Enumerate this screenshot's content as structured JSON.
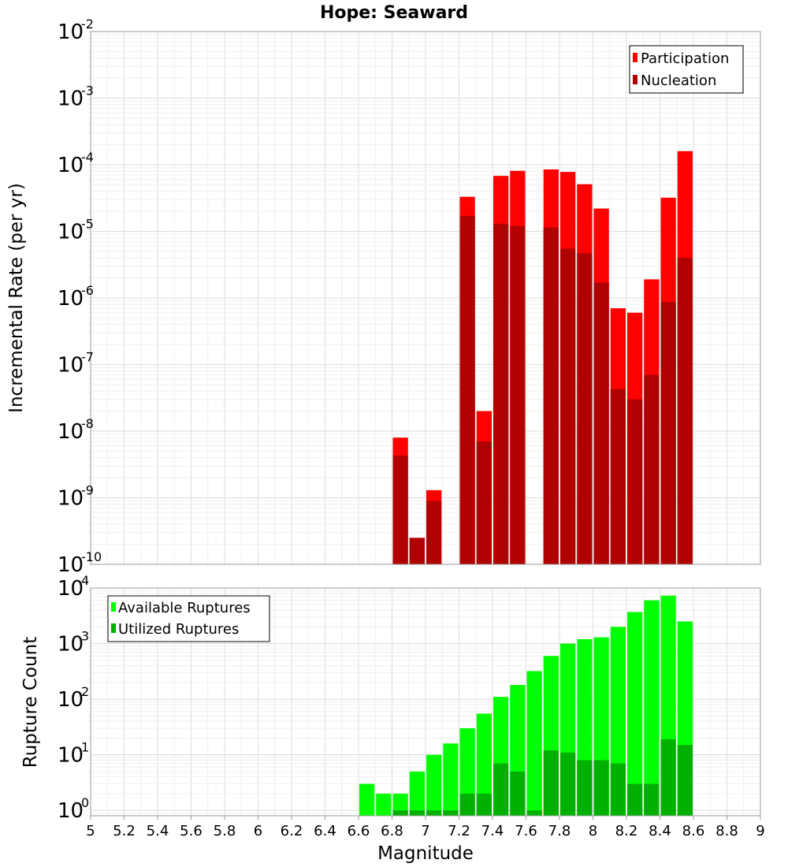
{
  "chart_data": [
    {
      "type": "bar",
      "title": "Hope: Seaward",
      "ylabel": "Incremental Rate (per yr)",
      "xlabel": "",
      "y_scale": "log",
      "ylim": [
        1e-10,
        0.01
      ],
      "xlim": [
        5,
        9
      ],
      "y_ticks": [
        {
          "base": "10",
          "exp": "-10"
        },
        {
          "base": "10",
          "exp": "-9"
        },
        {
          "base": "10",
          "exp": "-8"
        },
        {
          "base": "10",
          "exp": "-7"
        },
        {
          "base": "10",
          "exp": "-6"
        },
        {
          "base": "10",
          "exp": "-5"
        },
        {
          "base": "10",
          "exp": "-4"
        },
        {
          "base": "10",
          "exp": "-3"
        },
        {
          "base": "10",
          "exp": "-2"
        }
      ],
      "legend_position": "top-right",
      "grid": true,
      "series": [
        {
          "name": "Participation",
          "color": "#ff0000",
          "x": [
            6.85,
            6.95,
            7.05,
            7.25,
            7.35,
            7.45,
            7.55,
            7.75,
            7.85,
            7.95,
            8.05,
            8.15,
            8.25,
            8.35,
            8.45,
            8.55
          ],
          "values": [
            8e-09,
            2.5e-10,
            1.3e-09,
            3.3e-05,
            2e-08,
            6.8e-05,
            8.1e-05,
            8.5e-05,
            7.8e-05,
            5.1e-05,
            2.2e-05,
            7e-07,
            6e-07,
            1.9e-06,
            3.2e-05,
            0.00016
          ]
        },
        {
          "name": "Nucleation",
          "color": "#b00000",
          "x": [
            6.85,
            6.95,
            7.05,
            7.25,
            7.35,
            7.45,
            7.55,
            7.75,
            7.85,
            7.95,
            8.05,
            8.15,
            8.25,
            8.35,
            8.45,
            8.55
          ],
          "values": [
            4.3e-09,
            2.5e-10,
            9e-10,
            1.7e-05,
            7e-09,
            1.3e-05,
            1.2e-05,
            1.15e-05,
            5.5e-06,
            4.7e-06,
            1.7e-06,
            4.3e-08,
            3e-08,
            7e-08,
            8.7e-07,
            4e-06
          ]
        }
      ]
    },
    {
      "type": "bar",
      "title": "",
      "ylabel": "Rupture Count",
      "xlabel": "Magnitude",
      "y_scale": "log",
      "ylim": [
        0.8,
        10000
      ],
      "xlim": [
        5,
        9
      ],
      "x_ticks": [
        "5",
        "5.2",
        "5.4",
        "5.6",
        "5.8",
        "6",
        "6.2",
        "6.4",
        "6.6",
        "6.8",
        "7",
        "7.2",
        "7.4",
        "7.6",
        "7.8",
        "8",
        "8.2",
        "8.4",
        "8.6",
        "8.8",
        "9"
      ],
      "y_ticks": [
        {
          "base": "10",
          "exp": "0"
        },
        {
          "base": "10",
          "exp": "1"
        },
        {
          "base": "10",
          "exp": "2"
        },
        {
          "base": "10",
          "exp": "3"
        },
        {
          "base": "10",
          "exp": "4"
        }
      ],
      "legend_position": "top-left",
      "grid": true,
      "series": [
        {
          "name": "Available Ruptures",
          "color": "#00ff00",
          "x": [
            6.65,
            6.75,
            6.85,
            6.95,
            7.05,
            7.15,
            7.25,
            7.35,
            7.45,
            7.55,
            7.65,
            7.75,
            7.85,
            7.95,
            8.05,
            8.15,
            8.25,
            8.35,
            8.45,
            8.55
          ],
          "values": [
            3,
            2,
            2,
            5,
            10,
            16,
            30,
            55,
            110,
            180,
            320,
            600,
            1000,
            1200,
            1300,
            2000,
            3700,
            6000,
            7300,
            2500
          ]
        },
        {
          "name": "Utilized Ruptures",
          "color": "#00b000",
          "x": [
            6.85,
            6.95,
            7.05,
            7.15,
            7.25,
            7.35,
            7.45,
            7.55,
            7.65,
            7.75,
            7.85,
            7.95,
            8.05,
            8.15,
            8.25,
            8.35,
            8.45,
            8.55
          ],
          "values": [
            1,
            1,
            1,
            1,
            2,
            2,
            7,
            5,
            1,
            12,
            11,
            8,
            8,
            7,
            3,
            3,
            19,
            15
          ]
        }
      ]
    }
  ]
}
